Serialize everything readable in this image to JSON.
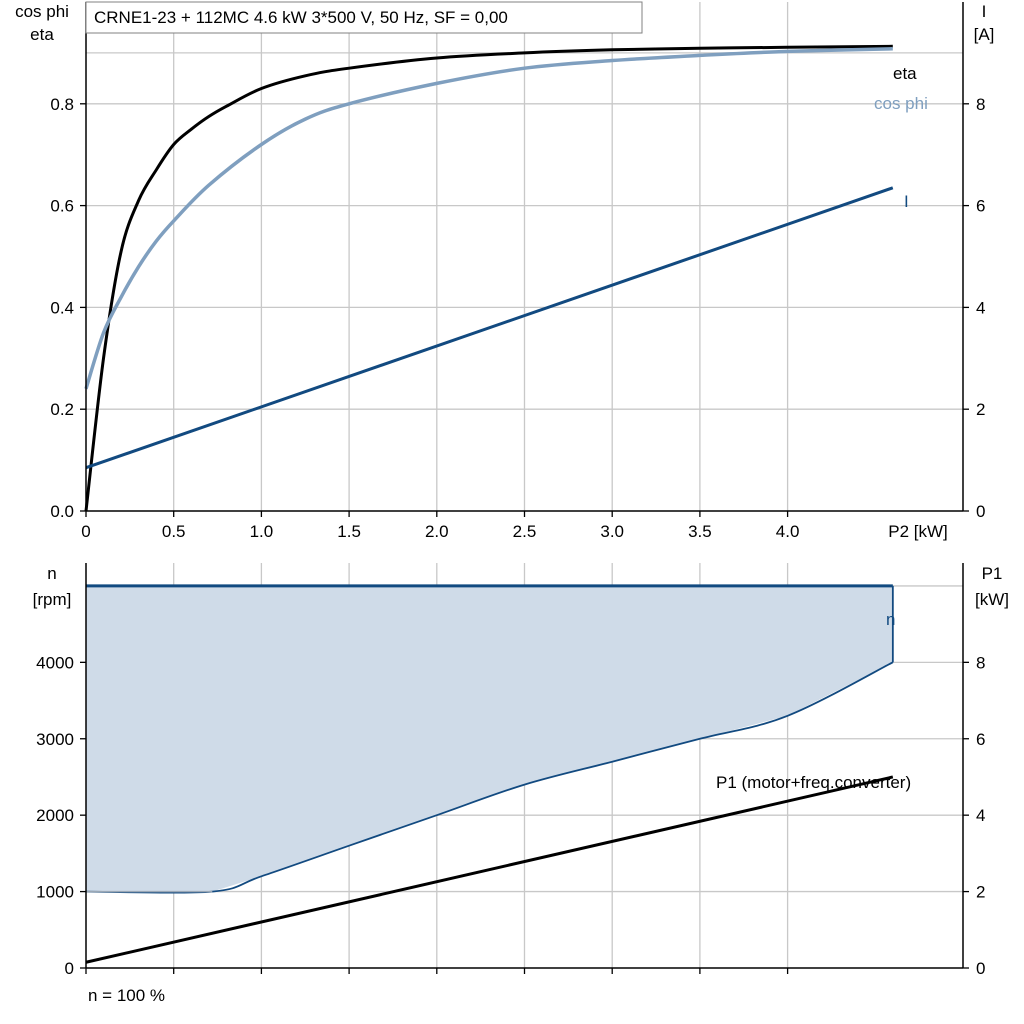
{
  "title": "CRNE1-23 + 112MC   4.6 kW   3*500 V, 50 Hz, SF = 0,00",
  "footer_note": "n = 100 %",
  "colors": {
    "eta": "#000000",
    "cos_phi": "#7f9fbf",
    "current": "#124a80",
    "speed": "#124a80",
    "speed_fill": "#cfdbe8",
    "p1": "#000000",
    "grid": "#c8c8c8"
  },
  "chart_data": [
    {
      "type": "line",
      "ylabel_left": [
        "cos phi",
        "eta"
      ],
      "ylabel_right": [
        "I",
        "[A]"
      ],
      "xlabel": "P2 [kW]",
      "xlim": [
        0,
        5
      ],
      "xticks": [
        0,
        0.5,
        1,
        1.5,
        2,
        2.5,
        3,
        3.5,
        4
      ],
      "xtick_labels": [
        "0",
        "0.5",
        "1.0",
        "1.5",
        "2.0",
        "2.5",
        "3.0",
        "3.5",
        "4.0"
      ],
      "ylim_left": [
        0,
        1
      ],
      "yticks_left": [
        0,
        0.2,
        0.4,
        0.6,
        0.8
      ],
      "ytick_labels_left": [
        "0.0",
        "0.2",
        "0.4",
        "0.6",
        "0.8"
      ],
      "ylim_right": [
        0,
        10
      ],
      "yticks_right": [
        0,
        2,
        4,
        6,
        8
      ],
      "ytick_labels_right": [
        "0",
        "2",
        "4",
        "6",
        "8"
      ],
      "grid": true,
      "series": [
        {
          "name": "eta",
          "axis": "left",
          "x": [
            0,
            0.1,
            0.2,
            0.3,
            0.4,
            0.5,
            0.6,
            0.7,
            0.8,
            1.0,
            1.25,
            1.5,
            2.0,
            2.5,
            3.0,
            3.5,
            4.0,
            4.6
          ],
          "y": [
            0,
            0.3,
            0.51,
            0.61,
            0.67,
            0.72,
            0.75,
            0.775,
            0.795,
            0.83,
            0.855,
            0.87,
            0.89,
            0.9,
            0.906,
            0.909,
            0.911,
            0.913
          ]
        },
        {
          "name": "cos phi",
          "axis": "left",
          "x": [
            0,
            0.1,
            0.2,
            0.3,
            0.4,
            0.5,
            0.7,
            1.0,
            1.25,
            1.5,
            2.0,
            2.5,
            3.0,
            3.5,
            4.0,
            4.6
          ],
          "y": [
            0.24,
            0.35,
            0.42,
            0.48,
            0.53,
            0.57,
            0.64,
            0.72,
            0.77,
            0.8,
            0.84,
            0.87,
            0.885,
            0.895,
            0.903,
            0.908
          ]
        },
        {
          "name": "I",
          "axis": "right",
          "x": [
            0,
            4.6
          ],
          "y": [
            0.85,
            6.35
          ]
        }
      ]
    },
    {
      "type": "area",
      "ylabel_left": [
        "n",
        "[rpm]"
      ],
      "ylabel_right": [
        "P1",
        "[kW]"
      ],
      "xlim": [
        0,
        5
      ],
      "xticks": [
        0,
        0.5,
        1,
        1.5,
        2,
        2.5,
        3,
        3.5,
        4
      ],
      "ylim_left": [
        0,
        5300
      ],
      "yticks_left": [
        0,
        1000,
        2000,
        3000,
        4000
      ],
      "ytick_labels_left": [
        "0",
        "1000",
        "2000",
        "3000",
        "4000"
      ],
      "ylim_right": [
        0,
        10.6
      ],
      "yticks_right": [
        0,
        2,
        4,
        6,
        8
      ],
      "ytick_labels_right": [
        "0",
        "2",
        "4",
        "6",
        "8"
      ],
      "grid": true,
      "series": [
        {
          "name": "n",
          "axis": "left",
          "kind": "band",
          "x_upper": [
            0,
            4.6
          ],
          "y_upper": [
            5000,
            5000
          ],
          "x_lower": [
            0,
            0.72,
            1.0,
            1.5,
            2.0,
            2.5,
            3.0,
            3.5,
            4.0,
            4.6
          ],
          "y_lower": [
            1000,
            1000,
            1200,
            1600,
            2000,
            2400,
            2700,
            3000,
            3300,
            4000
          ]
        },
        {
          "name": "P1 (motor+freq.converter)",
          "axis": "right",
          "x": [
            0,
            4.6
          ],
          "y": [
            0.15,
            5.0
          ]
        }
      ]
    }
  ]
}
